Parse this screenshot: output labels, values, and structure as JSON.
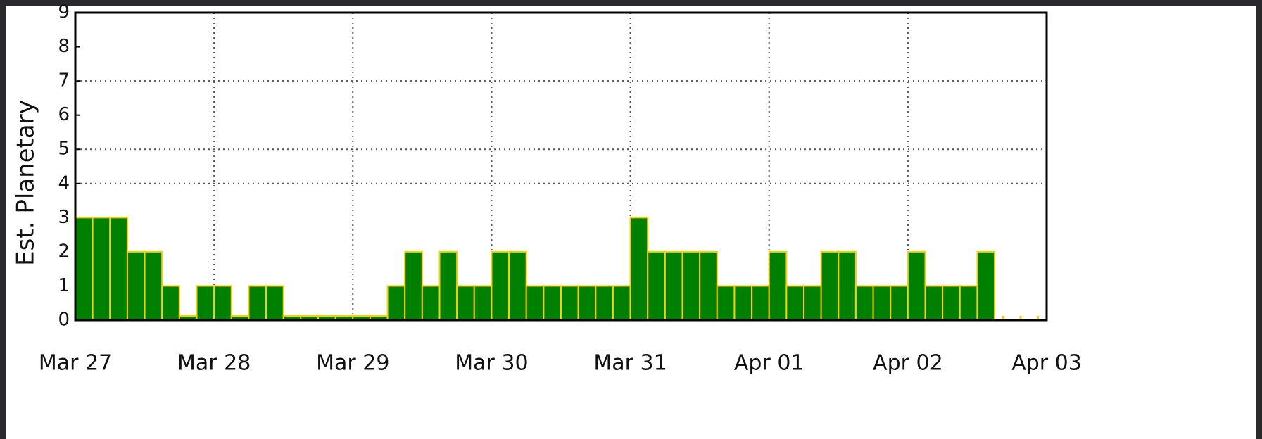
{
  "chart_data": {
    "type": "bar",
    "ylabel": "Est.  Planetary",
    "values": [
      3,
      3,
      3,
      2,
      2,
      1,
      0,
      1,
      1,
      0,
      1,
      1,
      0,
      0,
      0,
      0,
      0,
      0,
      1,
      2,
      1,
      2,
      1,
      1,
      2,
      2,
      1,
      1,
      1,
      1,
      1,
      1,
      3,
      2,
      2,
      2,
      2,
      1,
      1,
      1,
      2,
      1,
      1,
      2,
      2,
      1,
      1,
      1,
      2,
      1,
      1,
      1,
      2,
      null,
      null,
      null
    ],
    "color": "#008000",
    "edge_color": "#ffcc00",
    "xlim": [
      0,
      56
    ],
    "xticks": [
      {
        "value": 0,
        "label": "Mar 27"
      },
      {
        "value": 8,
        "label": "Mar 28"
      },
      {
        "value": 16,
        "label": "Mar 29"
      },
      {
        "value": 24,
        "label": "Mar 30"
      },
      {
        "value": 32,
        "label": "Mar 31"
      },
      {
        "value": 40,
        "label": "Apr 01"
      },
      {
        "value": 48,
        "label": "Apr 02"
      },
      {
        "value": 56,
        "label": "Apr 03"
      }
    ],
    "ylim": [
      0,
      9
    ],
    "yticks": [
      0,
      1,
      2,
      3,
      4,
      5,
      6,
      7,
      8,
      9
    ],
    "ygrid": [
      4,
      5,
      7
    ],
    "grid": true
  }
}
